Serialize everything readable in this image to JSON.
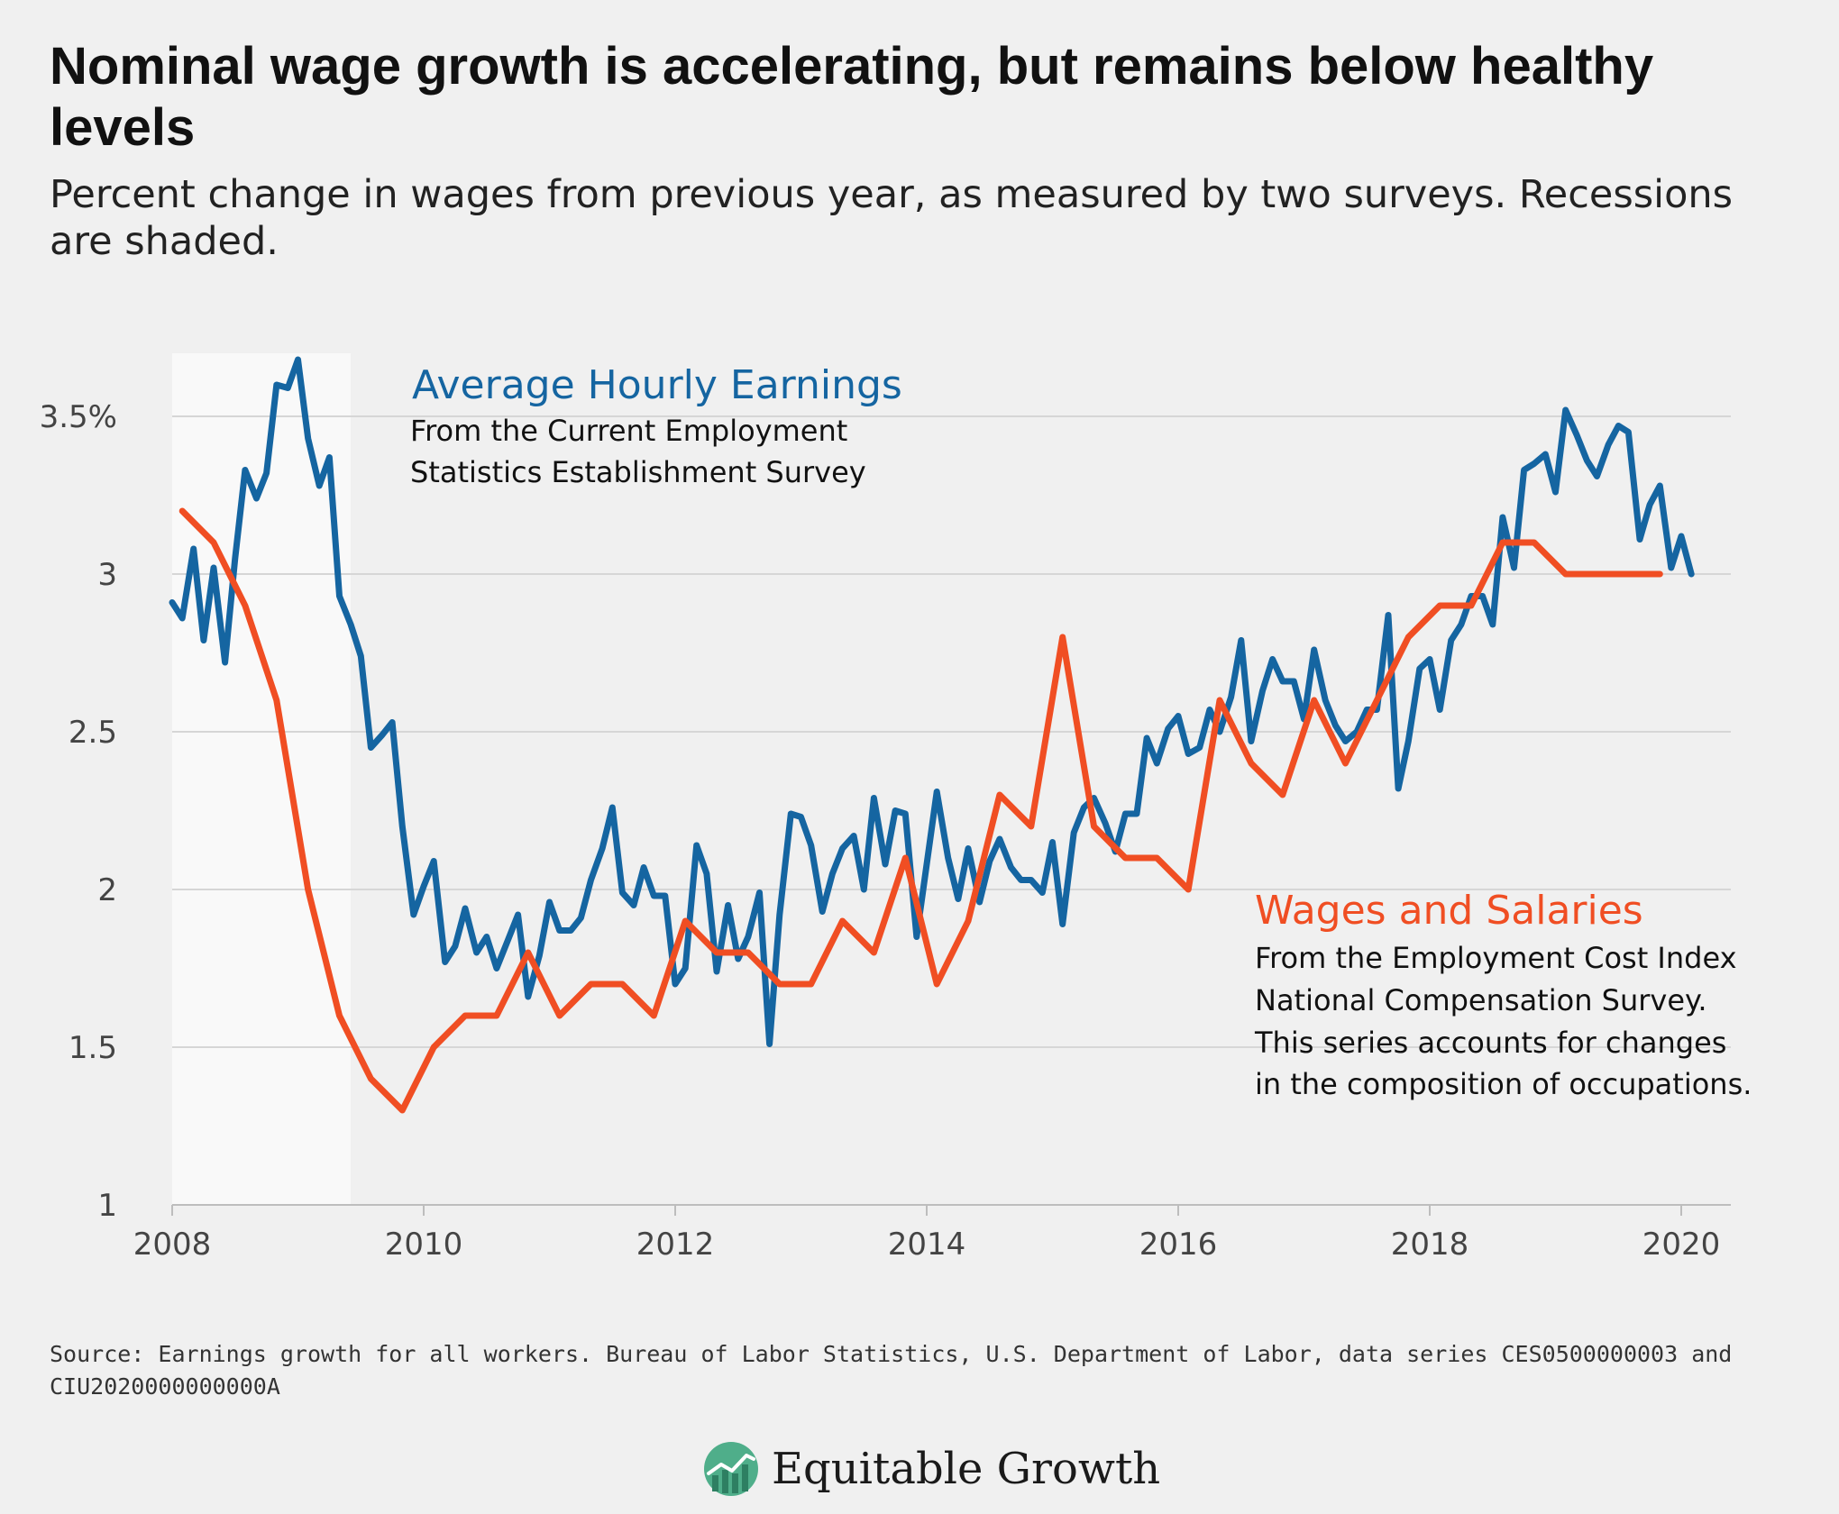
{
  "title": "Nominal wage growth is accelerating, but remains below healthy levels",
  "subtitle": "Percent change in wages from previous year, as measured by two surveys. Recessions are shaded.",
  "source": "Source: Earnings growth for all workers. Bureau of Labor Statistics, U.S. Department of Labor, data series CES0500000003 and CIU2020000000000A",
  "logo_text": "Equitable Growth",
  "colors": {
    "background": "#f0f0f0",
    "ahe": "#1565a1",
    "ws": "#f04e23",
    "recession": "#f9f9f9",
    "grid": "#d6d6d6"
  },
  "annotations": {
    "ahe_title": "Average Hourly Earnings",
    "ahe_lines": [
      "From the Current Employment",
      "Statistics Establishment Survey"
    ],
    "ws_title": "Wages and Salaries",
    "ws_lines": [
      "From the Employment Cost Index",
      "National Compensation Survey.",
      "This series accounts for changes",
      "in the composition of occupations."
    ]
  },
  "chart_data": {
    "type": "line",
    "title": "Nominal wage growth is accelerating, but remains below healthy levels",
    "xlim": [
      2008,
      2020.2
    ],
    "ylim": [
      1,
      3.7
    ],
    "xticks": [
      2008,
      2010,
      2012,
      2014,
      2016,
      2018,
      2020
    ],
    "xtick_labels": [
      "2008",
      "2010",
      "2012",
      "2014",
      "2016",
      "2018",
      "2020"
    ],
    "yticks": [
      1,
      1.5,
      2,
      2.5,
      3,
      3.5
    ],
    "ytick_labels": [
      "1",
      "1.5",
      "2",
      "2.5",
      "3",
      "3.5%"
    ],
    "grid": "horizontal",
    "recessions": [
      [
        2008.0,
        2009.42
      ]
    ],
    "series": [
      {
        "name": "Average Hourly Earnings",
        "color": "#1565a1",
        "x": [
          2008.0,
          2008.08,
          2008.17,
          2008.25,
          2008.33,
          2008.42,
          2008.5,
          2008.58,
          2008.67,
          2008.75,
          2008.83,
          2008.92,
          2009.0,
          2009.08,
          2009.17,
          2009.25,
          2009.33,
          2009.42,
          2009.5,
          2009.58,
          2009.67,
          2009.75,
          2009.83,
          2009.92,
          2010.0,
          2010.08,
          2010.17,
          2010.25,
          2010.33,
          2010.42,
          2010.5,
          2010.58,
          2010.67,
          2010.75,
          2010.83,
          2010.92,
          2011.0,
          2011.08,
          2011.17,
          2011.25,
          2011.33,
          2011.42,
          2011.5,
          2011.58,
          2011.67,
          2011.75,
          2011.83,
          2011.92,
          2012.0,
          2012.08,
          2012.17,
          2012.25,
          2012.33,
          2012.42,
          2012.5,
          2012.58,
          2012.67,
          2012.75,
          2012.83,
          2012.92,
          2013.0,
          2013.08,
          2013.17,
          2013.25,
          2013.33,
          2013.42,
          2013.5,
          2013.58,
          2013.67,
          2013.75,
          2013.83,
          2013.92,
          2014.0,
          2014.08,
          2014.17,
          2014.25,
          2014.33,
          2014.42,
          2014.5,
          2014.58,
          2014.67,
          2014.75,
          2014.83,
          2014.92,
          2015.0,
          2015.08,
          2015.17,
          2015.25,
          2015.33,
          2015.42,
          2015.5,
          2015.58,
          2015.67,
          2015.75,
          2015.83,
          2015.92,
          2016.0,
          2016.08,
          2016.17,
          2016.25,
          2016.33,
          2016.42,
          2016.5,
          2016.58,
          2016.67,
          2016.75,
          2016.83,
          2016.92,
          2017.0,
          2017.08,
          2017.17,
          2017.25,
          2017.33,
          2017.42,
          2017.5,
          2017.58,
          2017.67,
          2017.75,
          2017.83,
          2017.92,
          2018.0,
          2018.08,
          2018.17,
          2018.25,
          2018.33,
          2018.42,
          2018.5,
          2018.58,
          2018.67,
          2018.75,
          2018.83,
          2018.92,
          2019.0,
          2019.08,
          2019.17,
          2019.25,
          2019.33,
          2019.42,
          2019.5,
          2019.58,
          2019.67,
          2019.75,
          2019.83,
          2019.92,
          2020.0,
          2020.08
        ],
        "values": [
          2.91,
          2.86,
          3.08,
          2.79,
          3.02,
          2.72,
          3.05,
          3.33,
          3.24,
          3.32,
          3.6,
          3.59,
          3.68,
          3.43,
          3.28,
          3.37,
          2.93,
          2.84,
          2.74,
          2.45,
          2.49,
          2.53,
          2.2,
          1.92,
          2.01,
          2.09,
          1.77,
          1.82,
          1.94,
          1.8,
          1.85,
          1.75,
          1.84,
          1.92,
          1.66,
          1.79,
          1.96,
          1.87,
          1.87,
          1.91,
          2.03,
          2.13,
          2.26,
          1.99,
          1.95,
          2.07,
          1.98,
          1.98,
          1.7,
          1.75,
          2.14,
          2.05,
          1.74,
          1.95,
          1.78,
          1.85,
          1.99,
          1.51,
          1.92,
          2.24,
          2.23,
          2.14,
          1.93,
          2.05,
          2.13,
          2.17,
          2.0,
          2.29,
          2.08,
          2.25,
          2.24,
          1.85,
          2.08,
          2.31,
          2.1,
          1.97,
          2.13,
          1.96,
          2.09,
          2.16,
          2.07,
          2.03,
          2.03,
          1.99,
          2.15,
          1.89,
          2.18,
          2.26,
          2.29,
          2.21,
          2.12,
          2.24,
          2.24,
          2.48,
          2.4,
          2.51,
          2.55,
          2.43,
          2.45,
          2.57,
          2.5,
          2.61,
          2.79,
          2.47,
          2.63,
          2.73,
          2.66,
          2.66,
          2.54,
          2.76,
          2.6,
          2.52,
          2.47,
          2.5,
          2.57,
          2.57,
          2.87,
          2.32,
          2.47,
          2.7,
          2.73,
          2.57,
          2.79,
          2.84,
          2.93,
          2.93,
          2.84,
          3.18,
          3.02,
          3.33,
          3.35,
          3.38,
          3.26,
          3.52,
          3.44,
          3.36,
          3.31,
          3.41,
          3.47,
          3.45,
          3.11,
          3.22,
          3.28,
          3.02,
          3.12,
          3.0
        ]
      },
      {
        "name": "Wages and Salaries",
        "color": "#f04e23",
        "x": [
          2008.08,
          2008.33,
          2008.58,
          2008.83,
          2009.08,
          2009.33,
          2009.58,
          2009.83,
          2010.08,
          2010.33,
          2010.58,
          2010.83,
          2011.08,
          2011.33,
          2011.58,
          2011.83,
          2012.08,
          2012.33,
          2012.58,
          2012.83,
          2013.08,
          2013.33,
          2013.58,
          2013.83,
          2014.08,
          2014.33,
          2014.58,
          2014.83,
          2015.08,
          2015.33,
          2015.58,
          2015.83,
          2016.08,
          2016.33,
          2016.58,
          2016.83,
          2017.08,
          2017.33,
          2017.58,
          2017.83,
          2018.08,
          2018.33,
          2018.58,
          2018.83,
          2019.08,
          2019.33,
          2019.58,
          2019.83
        ],
        "values": [
          3.2,
          3.1,
          2.9,
          2.6,
          2.0,
          1.6,
          1.4,
          1.3,
          1.5,
          1.6,
          1.6,
          1.8,
          1.6,
          1.7,
          1.7,
          1.6,
          1.9,
          1.8,
          1.8,
          1.7,
          1.7,
          1.9,
          1.8,
          2.1,
          1.7,
          1.9,
          2.3,
          2.2,
          2.8,
          2.2,
          2.1,
          2.1,
          2.0,
          2.6,
          2.4,
          2.3,
          2.6,
          2.4,
          2.6,
          2.8,
          2.9,
          2.9,
          3.1,
          3.1,
          3.0,
          3.0,
          3.0,
          3.0
        ]
      }
    ]
  }
}
